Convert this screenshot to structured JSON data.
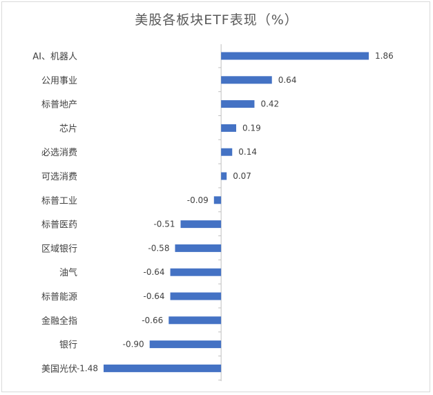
{
  "chart_data": {
    "type": "bar",
    "orientation": "horizontal",
    "title": "美股各板块ETF表现（%）",
    "categories": [
      "AI、机器人",
      "公用事业",
      "标普地产",
      "芯片",
      "必选消费",
      "可选消费",
      "标普工业",
      "标普医药",
      "区域银行",
      "油气",
      "标普能源",
      "金融全指",
      "银行",
      "美国光伏"
    ],
    "values": [
      1.86,
      0.64,
      0.42,
      0.19,
      0.14,
      0.07,
      -0.09,
      -0.51,
      -0.58,
      -0.64,
      -0.64,
      -0.66,
      -0.9,
      -1.48
    ],
    "value_labels": [
      "1.86",
      "0.64",
      "0.42",
      "0.19",
      "0.14",
      "0.07",
      "-0.09",
      "-0.51",
      "-0.58",
      "-0.64",
      "-0.64",
      "-0.66",
      "-0.90",
      "-1.48"
    ],
    "xlabel": "",
    "ylabel": "",
    "xlim": [
      -1.48,
      1.86
    ],
    "grid": false,
    "legend": "none",
    "bar_color": "#4472c4",
    "axis_color": "#bfbfbf",
    "text_color": "#404040"
  }
}
